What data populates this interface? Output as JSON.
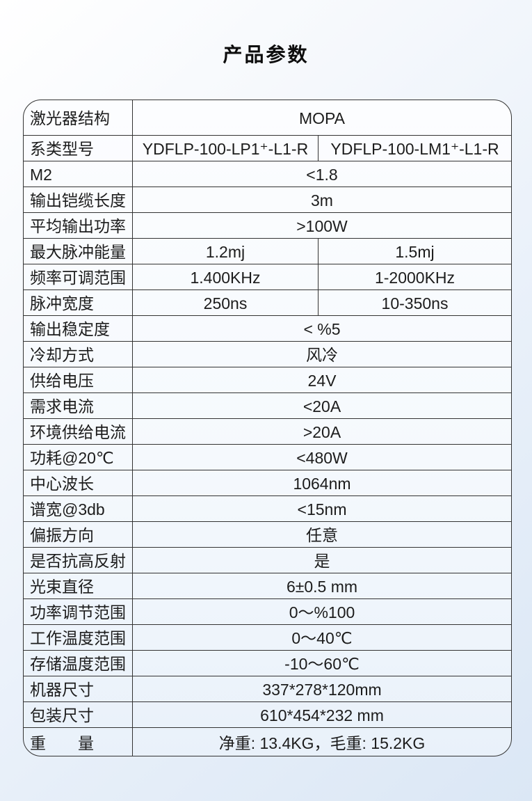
{
  "page": {
    "title": "产品参数"
  },
  "colors": {
    "background_top": "#ffffff",
    "background_bottom": "#dbe7f5",
    "table_background": "#fcfdff",
    "table_border": "#333333",
    "text": "#1c1c1c"
  },
  "table": {
    "rows": [
      {
        "label": "激光器结构",
        "type": "span",
        "value": "MOPA"
      },
      {
        "label": "系类型号",
        "type": "two",
        "value1": "YDFLP-100-LP1⁺-L1-R",
        "value2": "YDFLP-100-LM1⁺-L1-R"
      },
      {
        "label": "M2",
        "type": "span",
        "value": "<1.8"
      },
      {
        "label": "输出铠缆长度",
        "type": "span",
        "value": "3m"
      },
      {
        "label": "平均输出功率",
        "type": "span",
        "value": ">100W"
      },
      {
        "label": "最大脉冲能量",
        "type": "two",
        "value1": "1.2mj",
        "value2": "1.5mj"
      },
      {
        "label": "频率可调范围",
        "type": "two",
        "value1": "1.400KHz",
        "value2": "1-2000KHz"
      },
      {
        "label": "脉冲宽度",
        "type": "two",
        "value1": "250ns",
        "value2": "10-350ns"
      },
      {
        "label": "输出稳定度",
        "type": "span",
        "value": "< %5"
      },
      {
        "label": "冷却方式",
        "type": "span",
        "value": "风冷"
      },
      {
        "label": "供给电压",
        "type": "span",
        "value": "24V"
      },
      {
        "label": "需求电流",
        "type": "span",
        "value": "<20A"
      },
      {
        "label": "环境供给电流",
        "type": "span",
        "value": ">20A"
      },
      {
        "label": "功耗@20℃",
        "type": "span",
        "value": "<480W"
      },
      {
        "label": "中心波长",
        "type": "span",
        "value": "1064nm"
      },
      {
        "label": "谱宽@3db",
        "type": "span",
        "value": "<15nm"
      },
      {
        "label": "偏振方向",
        "type": "span",
        "value": "任意"
      },
      {
        "label": "是否抗高反射",
        "type": "span",
        "value": "是"
      },
      {
        "label": "光束直径",
        "type": "span",
        "value": "6±0.5 mm"
      },
      {
        "label": "功率调节范围",
        "type": "span",
        "value": "0～%100"
      },
      {
        "label": "工作温度范围",
        "type": "span",
        "value": "0～40℃"
      },
      {
        "label": "存储温度范围",
        "type": "span",
        "value": "-10～60℃"
      },
      {
        "label": "机器尺寸",
        "type": "span",
        "value": "337*278*120mm"
      },
      {
        "label": "包装尺寸",
        "type": "span",
        "value": "610*454*232 mm"
      },
      {
        "label": "重　　量",
        "type": "span",
        "value": "净重: 13.4KG，毛重: 15.2KG"
      }
    ]
  }
}
